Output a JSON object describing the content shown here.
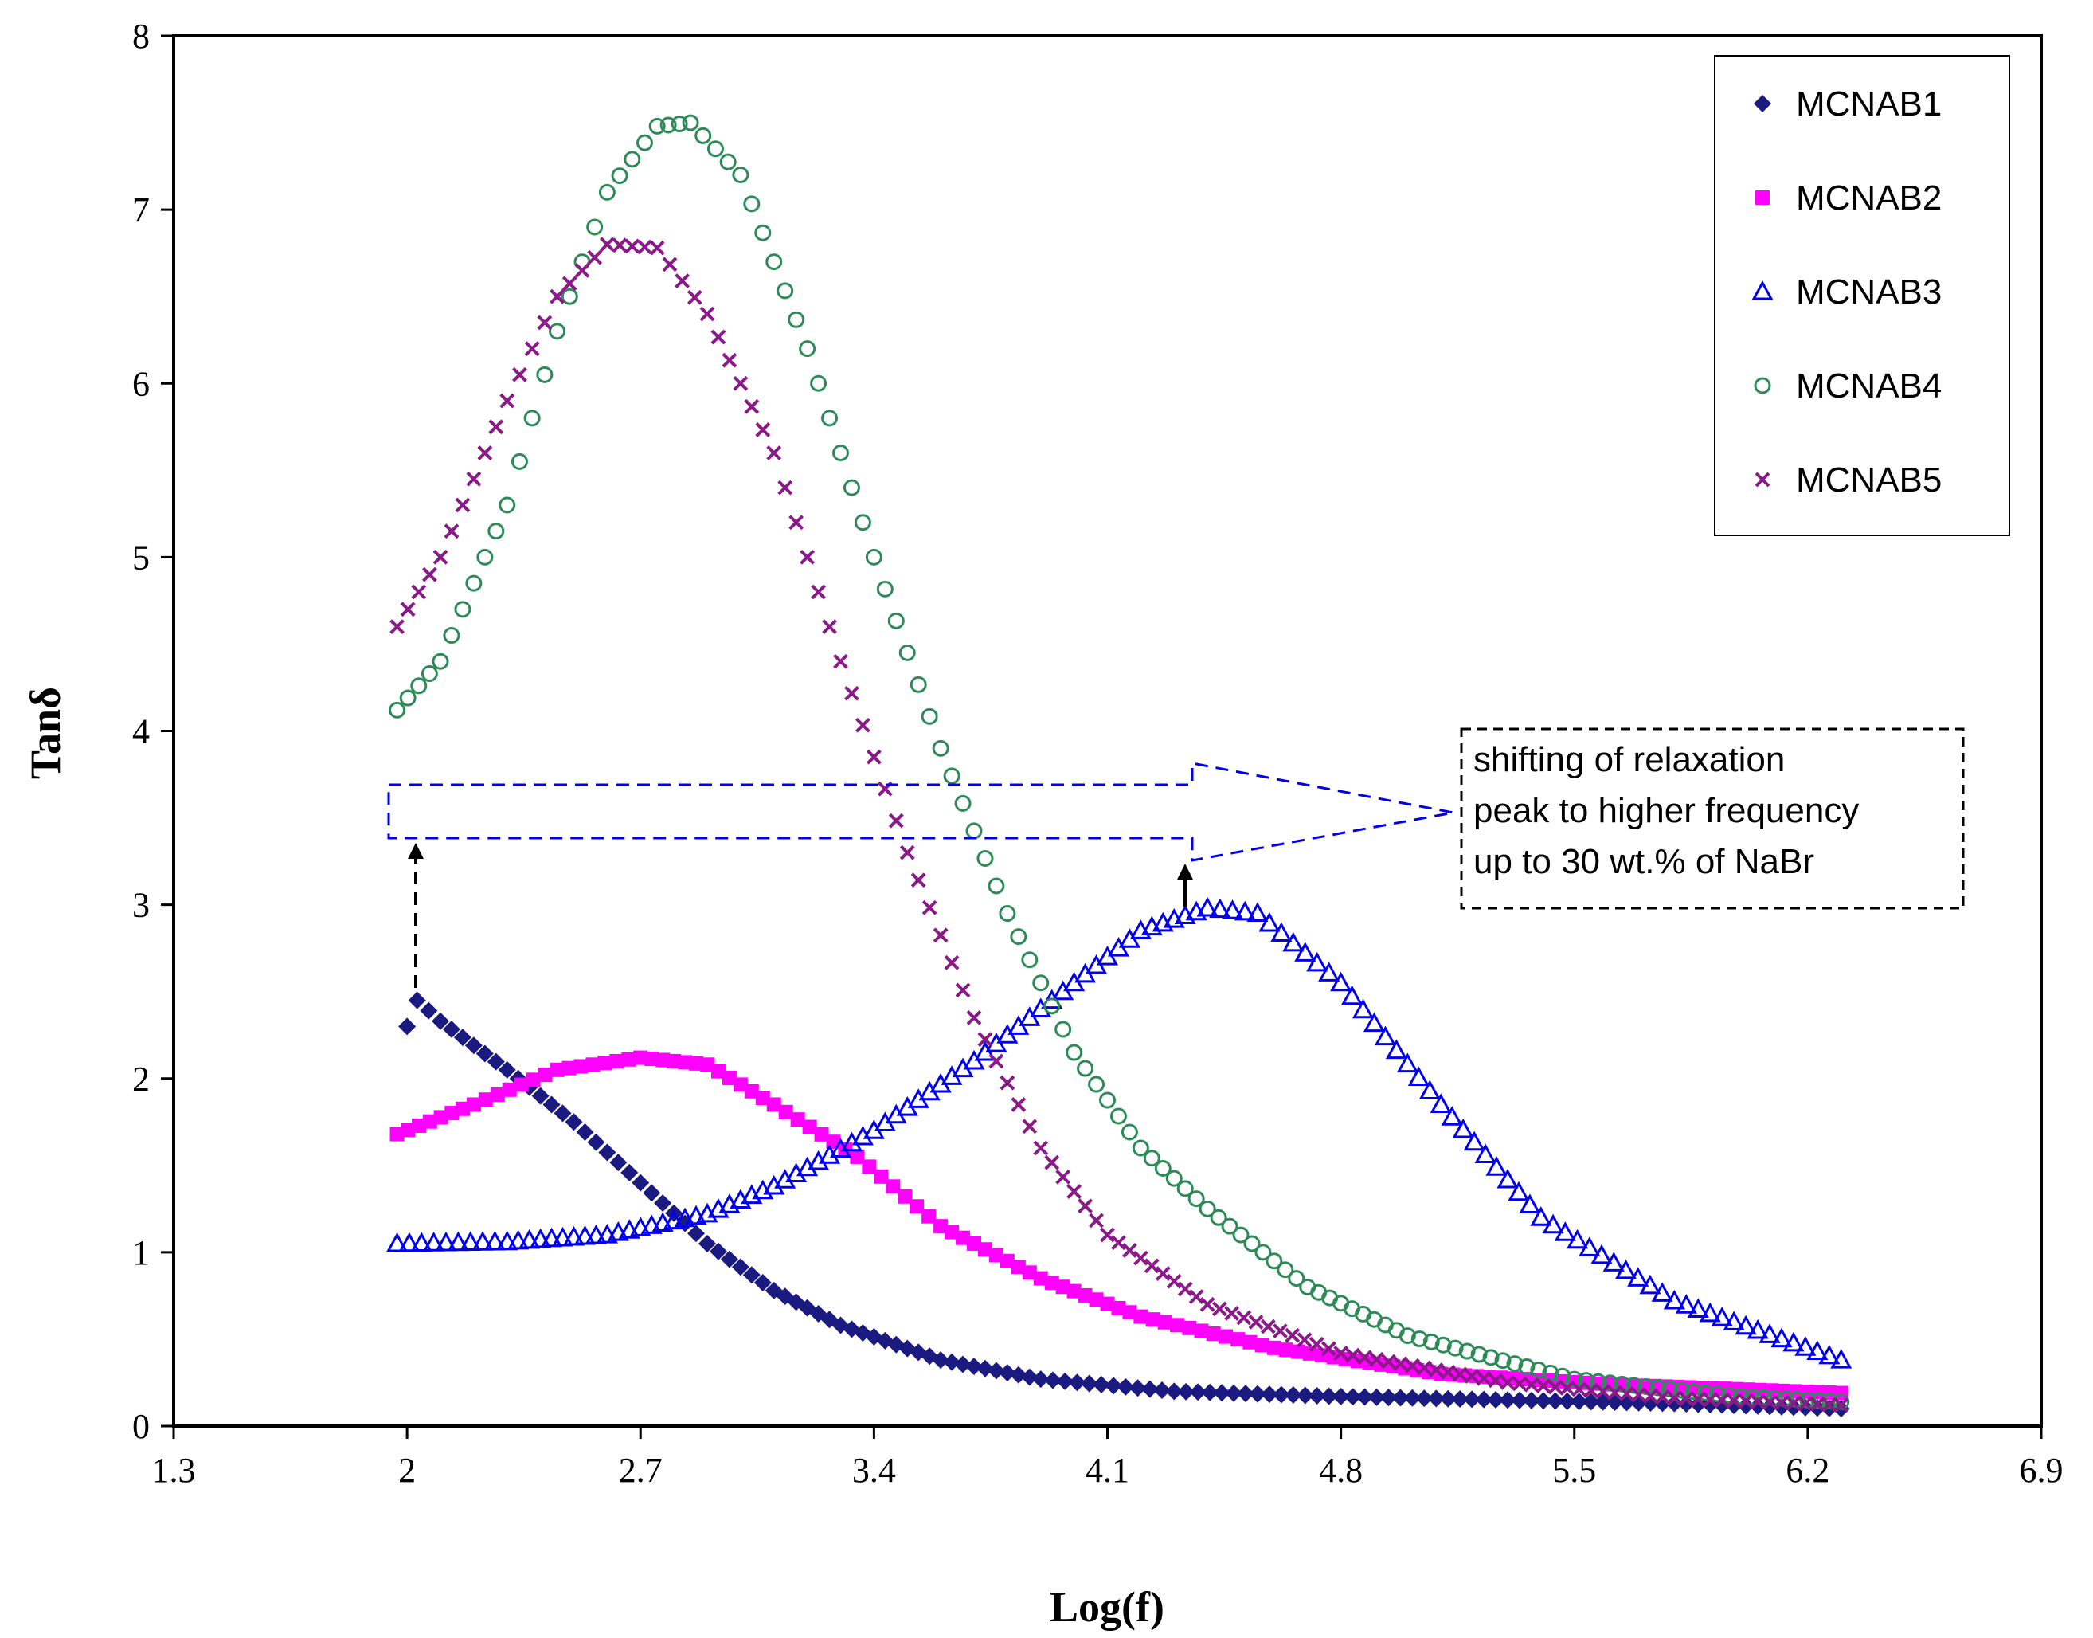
{
  "chart_data": {
    "type": "scatter",
    "title": "",
    "xlabel": "Log(f)",
    "ylabel": "Tanδ",
    "xlim": [
      1.3,
      6.9
    ],
    "ylim": [
      0,
      8
    ],
    "xticks": [
      "1.3",
      "2",
      "2.7",
      "3.4",
      "4.1",
      "4.8",
      "5.5",
      "6.2",
      "6.9"
    ],
    "yticks": [
      "0",
      "1",
      "2",
      "3",
      "4",
      "5",
      "6",
      "7",
      "8"
    ],
    "grid": false,
    "legend_position": "top-right",
    "series": [
      {
        "name": "MCNAB1",
        "marker": "diamond",
        "color": "#1a1a80",
        "x": [
          2.0,
          2.03,
          2.1,
          2.3,
          2.5,
          2.7,
          2.9,
          3.1,
          3.3,
          3.6,
          3.9,
          4.3,
          4.8,
          5.3,
          5.8,
          6.3
        ],
        "y": [
          2.3,
          2.45,
          2.33,
          2.05,
          1.75,
          1.4,
          1.05,
          0.78,
          0.58,
          0.38,
          0.27,
          0.2,
          0.17,
          0.15,
          0.13,
          0.1
        ]
      },
      {
        "name": "MCNAB2",
        "marker": "square",
        "color": "#ff00ff",
        "x": [
          1.97,
          2.2,
          2.45,
          2.7,
          2.9,
          3.1,
          3.35,
          3.6,
          3.9,
          4.2,
          4.6,
          5.1,
          5.6,
          6.3
        ],
        "y": [
          1.68,
          1.85,
          2.05,
          2.12,
          2.08,
          1.85,
          1.55,
          1.15,
          0.85,
          0.63,
          0.45,
          0.3,
          0.24,
          0.19
        ]
      },
      {
        "name": "MCNAB3",
        "marker": "triangle",
        "color": "#0000ee",
        "x": [
          1.97,
          2.3,
          2.6,
          2.9,
          3.1,
          3.4,
          3.7,
          4.0,
          4.2,
          4.4,
          4.55,
          4.8,
          5.1,
          5.4,
          5.8,
          6.3
        ],
        "y": [
          1.05,
          1.06,
          1.1,
          1.22,
          1.38,
          1.7,
          2.1,
          2.55,
          2.85,
          2.98,
          2.95,
          2.55,
          1.85,
          1.2,
          0.72,
          0.38
        ]
      },
      {
        "name": "MCNAB4",
        "marker": "circle",
        "color": "#2e8b57",
        "x": [
          1.97,
          2.1,
          2.3,
          2.45,
          2.6,
          2.75,
          2.85,
          3.0,
          3.2,
          3.4,
          3.6,
          3.8,
          4.0,
          4.2,
          4.4,
          4.7,
          5.0,
          5.5,
          6.0,
          6.3
        ],
        "y": [
          4.12,
          4.4,
          5.3,
          6.3,
          7.1,
          7.48,
          7.5,
          7.2,
          6.2,
          5.0,
          3.9,
          2.95,
          2.15,
          1.6,
          1.25,
          0.8,
          0.52,
          0.27,
          0.17,
          0.14
        ]
      },
      {
        "name": "MCNAB5",
        "marker": "x",
        "color": "#8b1a89",
        "x": [
          1.97,
          2.1,
          2.3,
          2.45,
          2.6,
          2.75,
          2.9,
          3.1,
          3.3,
          3.5,
          3.7,
          3.9,
          4.1,
          4.4,
          4.8,
          5.3,
          5.8,
          6.3
        ],
        "y": [
          4.6,
          5.0,
          5.9,
          6.5,
          6.8,
          6.78,
          6.4,
          5.6,
          4.4,
          3.3,
          2.35,
          1.6,
          1.1,
          0.7,
          0.42,
          0.25,
          0.16,
          0.12
        ]
      }
    ],
    "annotation": {
      "line1": "shifting of relaxation",
      "line2": "peak to higher frequency",
      "line3": "up to 30 wt.% of NaBr"
    }
  }
}
